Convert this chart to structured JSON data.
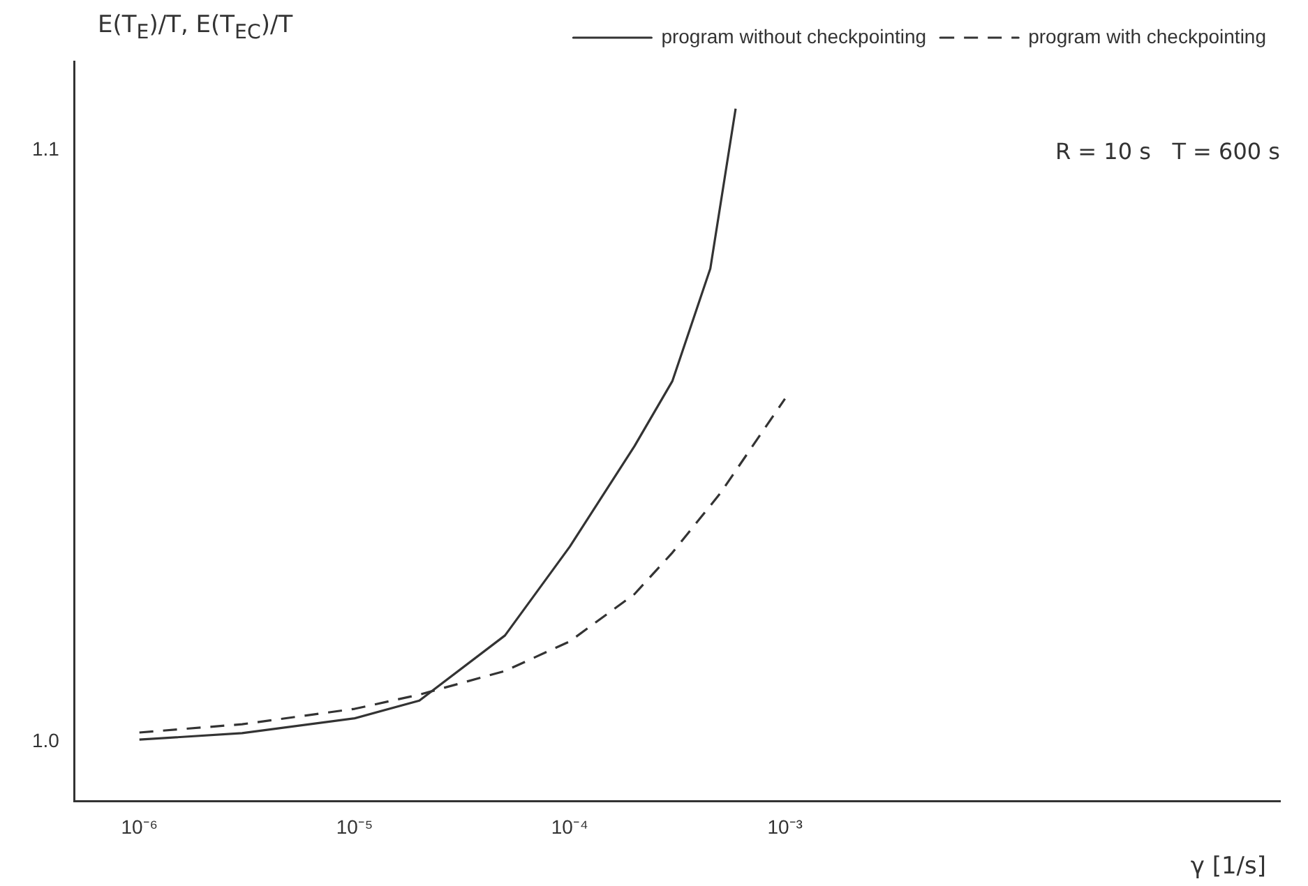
{
  "chart_data": {
    "type": "line",
    "ylabel": "E(T$_{E}$)/T, E(T$_{EC}$)/T",
    "xlabel": "γ [1/s]",
    "annotations": [
      "R = 10 s   T = 600 s"
    ],
    "series": [
      {
        "name": "program without checkpointing",
        "color": "#333333",
        "line_style": "solid",
        "x": [
          1e-06,
          3e-06,
          1e-05,
          2e-05,
          5e-05,
          0.0001,
          0.0002,
          0.0003,
          0.00045,
          0.00059
        ],
        "values": [
          1.0004,
          1.0015,
          1.004,
          1.007,
          1.018,
          1.033,
          1.05,
          1.061,
          1.08,
          1.107
        ]
      },
      {
        "name": "program with checkpointing",
        "color": "#333333",
        "line_style": "dashed",
        "x": [
          1e-06,
          3e-06,
          1e-05,
          2e-05,
          5e-05,
          0.0001,
          0.0002,
          0.0003,
          0.0005,
          0.001
        ],
        "values": [
          1.0016,
          1.003,
          1.0056,
          1.008,
          1.012,
          1.017,
          1.025,
          1.032,
          1.042,
          1.058
        ]
      }
    ],
    "log": "x",
    "xlim": [
      5e-07,
      0.2
    ],
    "ylim": [
      0.99,
      1.115
    ],
    "xticks": [
      {
        "value": 1e-06,
        "label": "10⁻⁶"
      },
      {
        "value": 1e-05,
        "label": "10⁻⁵"
      },
      {
        "value": 0.0001,
        "label": "10⁻⁴"
      },
      {
        "value": 0.001,
        "label": "10⁻³"
      }
    ],
    "yticks": [
      {
        "value": 1,
        "label": "1.0"
      },
      {
        "value": 1.1,
        "label": "1.1"
      }
    ],
    "grid": false,
    "legend": "top right",
    "marker": "none"
  }
}
